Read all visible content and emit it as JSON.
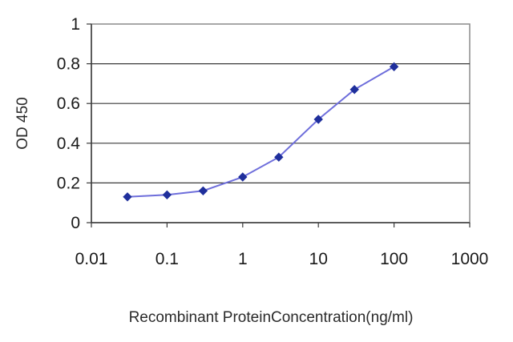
{
  "chart_data": {
    "type": "line",
    "xlabel": "Recombinant ProteinConcentration(ng/ml)",
    "ylabel": "OD 450",
    "x_scale": "log",
    "xlim": [
      0.01,
      1000
    ],
    "ylim": [
      0,
      1
    ],
    "x_ticks": [
      "0.01",
      "0.1",
      "1",
      "10",
      "100",
      "1000"
    ],
    "y_ticks": [
      "0",
      "0.2",
      "0.4",
      "0.6",
      "0.8",
      "1"
    ],
    "grid": "horizontal",
    "legend": "none",
    "series": [
      {
        "color": "#1f2f9c",
        "line_color": "#6e6edb",
        "points": [
          {
            "x": 0.03,
            "y": 0.13
          },
          {
            "x": 0.1,
            "y": 0.14
          },
          {
            "x": 0.3,
            "y": 0.16
          },
          {
            "x": 1,
            "y": 0.23
          },
          {
            "x": 3,
            "y": 0.33
          },
          {
            "x": 10,
            "y": 0.52
          },
          {
            "x": 30,
            "y": 0.67
          },
          {
            "x": 100,
            "y": 0.785
          }
        ]
      }
    ]
  }
}
